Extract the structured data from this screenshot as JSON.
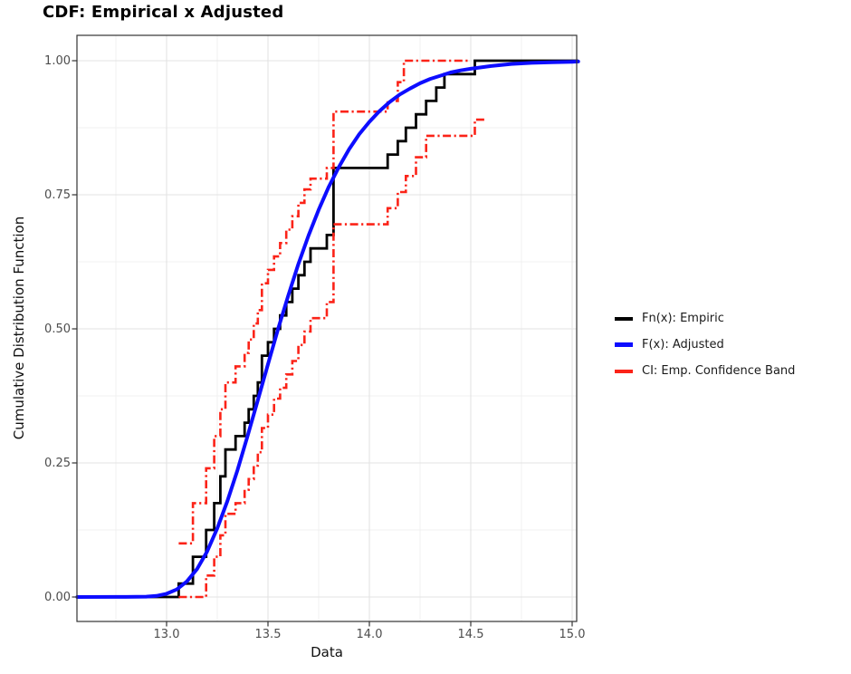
{
  "title": "CDF: Empirical x Adjusted",
  "axes": {
    "x": {
      "label": "Data",
      "ticks": [
        13.0,
        13.5,
        14.0,
        14.5,
        15.0
      ],
      "tick_labels": [
        "13.0",
        "13.5",
        "14.0",
        "14.5",
        "15.0"
      ],
      "minor_ticks": [
        12.75,
        13.25,
        13.75,
        14.25,
        14.75
      ],
      "range": [
        12.56,
        15.03
      ]
    },
    "y": {
      "label": "Cumulative Distribution Function",
      "ticks": [
        0.0,
        0.25,
        0.5,
        0.75,
        1.0
      ],
      "tick_labels": [
        "0.00",
        "0.25",
        "0.50",
        "0.75",
        "1.00"
      ],
      "minor_ticks": [
        0.125,
        0.375,
        0.625,
        0.875
      ],
      "range": [
        -0.046,
        1.047
      ]
    }
  },
  "legend": {
    "items": [
      {
        "label": "Fn(x): Empiric",
        "color": "#000000"
      },
      {
        "label": "F(x): Adjusted",
        "color": "#0d0dff"
      },
      {
        "label": "CI: Emp. Confidence Band",
        "color": "#fb2318"
      }
    ]
  },
  "chart_data": {
    "type": "line",
    "title": "CDF: Empirical x Adjusted",
    "xlabel": "Data",
    "ylabel": "Cumulative Distribution Function",
    "xlim": [
      12.56,
      15.03
    ],
    "ylim": [
      -0.046,
      1.047
    ],
    "grid": "on",
    "legend_position": "right",
    "sample_size": 40,
    "data_values_sorted": [
      13.06,
      13.13,
      13.13,
      13.195,
      13.195,
      13.235,
      13.235,
      13.265,
      13.265,
      13.29,
      13.29,
      13.34,
      13.385,
      13.405,
      13.43,
      13.45,
      13.47,
      13.47,
      13.5,
      13.53,
      13.56,
      13.59,
      13.62,
      13.65,
      13.68,
      13.71,
      13.79,
      13.823,
      13.823,
      13.823,
      13.823,
      13.823,
      14.09,
      14.14,
      14.18,
      14.23,
      14.28,
      14.33,
      14.37,
      14.52
    ],
    "series": [
      {
        "name": "Fn(x): Empiric",
        "kind": "step",
        "color": "#000000",
        "linewidth": 2.8,
        "start": [
          12.56,
          0
        ],
        "steps": [
          [
            13.06,
            0.025
          ],
          [
            13.13,
            0.075
          ],
          [
            13.195,
            0.125
          ],
          [
            13.235,
            0.175
          ],
          [
            13.265,
            0.225
          ],
          [
            13.29,
            0.275
          ],
          [
            13.34,
            0.3
          ],
          [
            13.385,
            0.325
          ],
          [
            13.405,
            0.35
          ],
          [
            13.43,
            0.375
          ],
          [
            13.45,
            0.4
          ],
          [
            13.47,
            0.45
          ],
          [
            13.5,
            0.475
          ],
          [
            13.53,
            0.5
          ],
          [
            13.56,
            0.525
          ],
          [
            13.59,
            0.55
          ],
          [
            13.62,
            0.575
          ],
          [
            13.65,
            0.6
          ],
          [
            13.68,
            0.625
          ],
          [
            13.71,
            0.65
          ],
          [
            13.79,
            0.675
          ],
          [
            13.823,
            0.8
          ],
          [
            14.09,
            0.825
          ],
          [
            14.14,
            0.85
          ],
          [
            14.18,
            0.875
          ],
          [
            14.23,
            0.9
          ],
          [
            14.28,
            0.925
          ],
          [
            14.33,
            0.95
          ],
          [
            14.37,
            0.975
          ],
          [
            14.52,
            1.0
          ]
        ],
        "end_x": 15.03
      },
      {
        "name": "F(x): Adjusted",
        "kind": "smooth",
        "color": "#0d0dff",
        "linewidth": 4,
        "points": [
          [
            12.56,
            0.0
          ],
          [
            12.8,
            0.0001
          ],
          [
            12.9,
            0.0006
          ],
          [
            12.95,
            0.002
          ],
          [
            13.0,
            0.006
          ],
          [
            13.05,
            0.014
          ],
          [
            13.1,
            0.029
          ],
          [
            13.15,
            0.052
          ],
          [
            13.2,
            0.085
          ],
          [
            13.25,
            0.128
          ],
          [
            13.3,
            0.179
          ],
          [
            13.35,
            0.237
          ],
          [
            13.4,
            0.301
          ],
          [
            13.45,
            0.367
          ],
          [
            13.5,
            0.434
          ],
          [
            13.55,
            0.5
          ],
          [
            13.6,
            0.562
          ],
          [
            13.65,
            0.621
          ],
          [
            13.7,
            0.674
          ],
          [
            13.75,
            0.722
          ],
          [
            13.8,
            0.765
          ],
          [
            13.85,
            0.802
          ],
          [
            13.9,
            0.835
          ],
          [
            13.95,
            0.863
          ],
          [
            14.0,
            0.886
          ],
          [
            14.05,
            0.906
          ],
          [
            14.1,
            0.923
          ],
          [
            14.15,
            0.937
          ],
          [
            14.2,
            0.948
          ],
          [
            14.25,
            0.958
          ],
          [
            14.3,
            0.966
          ],
          [
            14.35,
            0.972
          ],
          [
            14.4,
            0.978
          ],
          [
            14.45,
            0.982
          ],
          [
            14.5,
            0.985
          ],
          [
            14.6,
            0.99
          ],
          [
            14.7,
            0.994
          ],
          [
            14.8,
            0.996
          ],
          [
            14.9,
            0.997
          ],
          [
            15.0,
            0.998
          ],
          [
            15.03,
            0.9985
          ]
        ]
      },
      {
        "name": "CI upper: Emp. Confidence Band",
        "kind": "step",
        "color": "#fb2318",
        "linewidth": 2.6,
        "dash": [
          9,
          3.5,
          2.2,
          3.5
        ],
        "start": [
          13.06,
          0.1
        ],
        "steps": [
          [
            13.13,
            0.175
          ],
          [
            13.195,
            0.24
          ],
          [
            13.235,
            0.3
          ],
          [
            13.265,
            0.35
          ],
          [
            13.29,
            0.4
          ],
          [
            13.34,
            0.43
          ],
          [
            13.385,
            0.455
          ],
          [
            13.405,
            0.48
          ],
          [
            13.43,
            0.51
          ],
          [
            13.45,
            0.535
          ],
          [
            13.47,
            0.585
          ],
          [
            13.5,
            0.61
          ],
          [
            13.53,
            0.635
          ],
          [
            13.56,
            0.66
          ],
          [
            13.59,
            0.685
          ],
          [
            13.62,
            0.71
          ],
          [
            13.65,
            0.735
          ],
          [
            13.68,
            0.76
          ],
          [
            13.71,
            0.78
          ],
          [
            13.79,
            0.8
          ],
          [
            13.823,
            0.905
          ],
          [
            14.09,
            0.925
          ],
          [
            14.14,
            0.96
          ],
          [
            14.17,
            1.0
          ]
        ],
        "end_x": 14.5
      },
      {
        "name": "CI lower: Emp. Confidence Band",
        "kind": "step",
        "color": "#fb2318",
        "linewidth": 2.6,
        "dash": [
          9,
          3.5,
          2.2,
          3.5
        ],
        "start": [
          13.06,
          0.0
        ],
        "steps": [
          [
            13.195,
            0.04
          ],
          [
            13.235,
            0.075
          ],
          [
            13.265,
            0.115
          ],
          [
            13.29,
            0.155
          ],
          [
            13.34,
            0.175
          ],
          [
            13.385,
            0.2
          ],
          [
            13.405,
            0.22
          ],
          [
            13.43,
            0.245
          ],
          [
            13.45,
            0.27
          ],
          [
            13.47,
            0.315
          ],
          [
            13.5,
            0.34
          ],
          [
            13.53,
            0.37
          ],
          [
            13.56,
            0.39
          ],
          [
            13.59,
            0.415
          ],
          [
            13.62,
            0.44
          ],
          [
            13.65,
            0.47
          ],
          [
            13.68,
            0.495
          ],
          [
            13.71,
            0.52
          ],
          [
            13.79,
            0.55
          ],
          [
            13.823,
            0.695
          ],
          [
            14.09,
            0.725
          ],
          [
            14.14,
            0.755
          ],
          [
            14.18,
            0.785
          ],
          [
            14.23,
            0.82
          ],
          [
            14.28,
            0.86
          ],
          [
            14.52,
            0.89
          ]
        ],
        "end_x": 14.57
      }
    ]
  },
  "style_colors": {
    "panel_background": "#ffffff",
    "panel_border": "#333333",
    "grid_major": "#e3e3e3",
    "grid_minor": "#f0f0f0",
    "tick_mark": "#333333",
    "tick_label": "#4d4d4d",
    "axis_title": "#111111",
    "title": "#000000",
    "legend_label": "#1a1a1a"
  }
}
